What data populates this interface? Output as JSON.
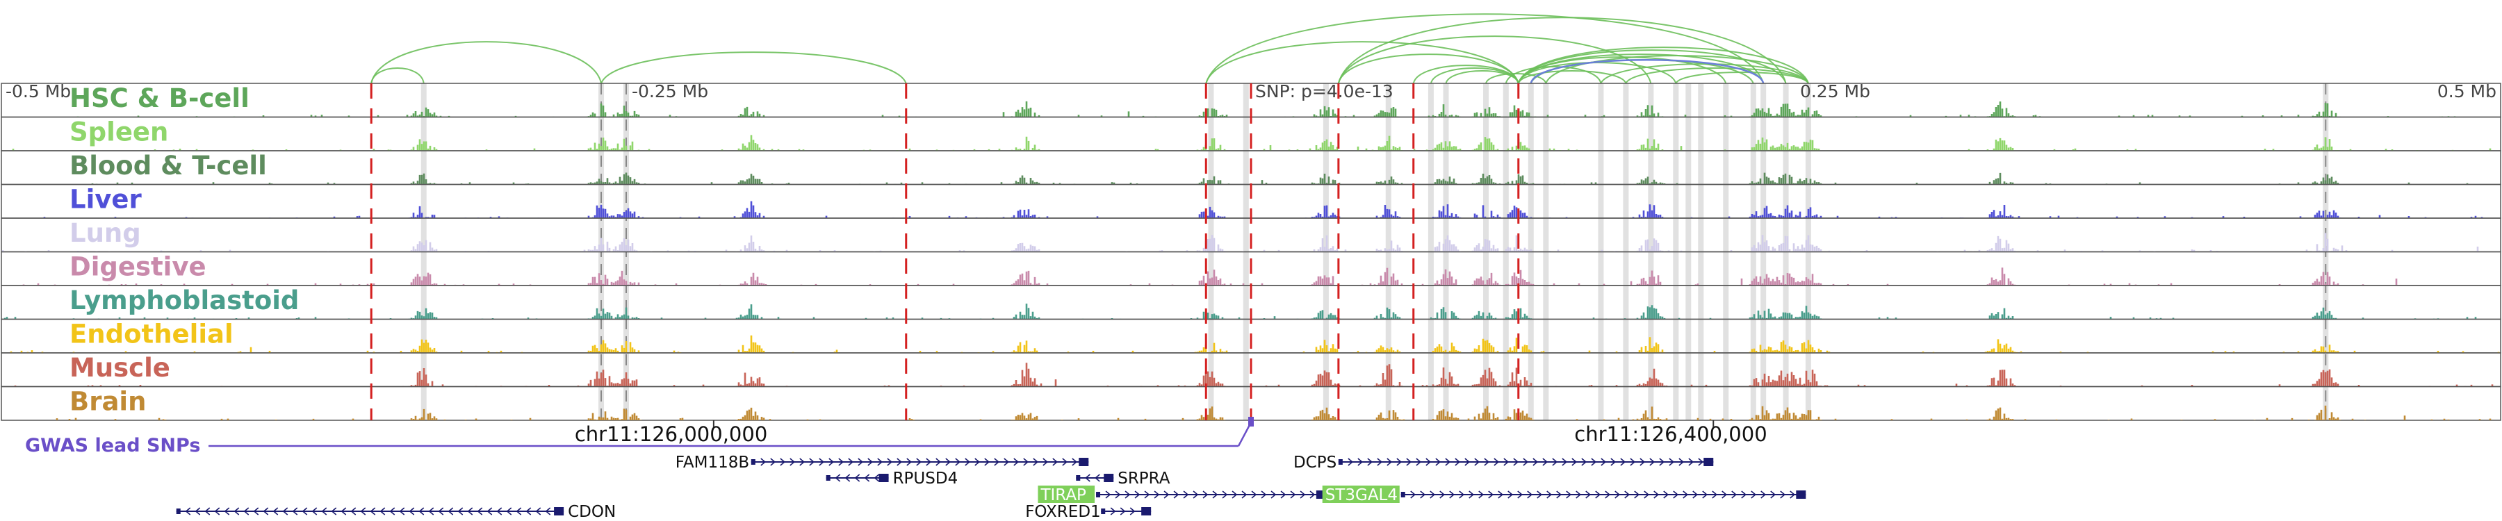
{
  "tracks": [
    {
      "name": "HSC & B-cell",
      "color": "#5da65a",
      "seed": 11,
      "amp": 0.55
    },
    {
      "name": "Spleen",
      "color": "#8fd66b",
      "seed": 23,
      "amp": 0.55
    },
    {
      "name": "Blood & T-cell",
      "color": "#5e8c5e",
      "seed": 37,
      "amp": 0.45
    },
    {
      "name": "Liver",
      "color": "#5050d8",
      "seed": 41,
      "amp": 0.6
    },
    {
      "name": "Lung",
      "color": "#d2cdea",
      "seed": 53,
      "amp": 0.65
    },
    {
      "name": "Digestive",
      "color": "#c98aab",
      "seed": 67,
      "amp": 0.7
    },
    {
      "name": "Lymphoblastoid",
      "color": "#4a9e8c",
      "seed": 71,
      "amp": 0.55
    },
    {
      "name": "Endothelial",
      "color": "#f2c418",
      "seed": 83,
      "amp": 0.6
    },
    {
      "name": "Muscle",
      "color": "#c86458",
      "seed": 97,
      "amp": 0.85
    },
    {
      "name": "Brain",
      "color": "#c08a34",
      "seed": 101,
      "amp": 0.55
    }
  ],
  "axis": {
    "range_mb": [
      -0.5,
      0.5
    ],
    "ticks": [
      {
        "pos": -0.5,
        "label": "-0.5 Mb"
      },
      {
        "pos": -0.25,
        "label": "-0.25 Mb"
      },
      {
        "pos": 0.25,
        "label": "0.25 Mb"
      },
      {
        "pos": 0.5,
        "label": "0.5 Mb"
      }
    ],
    "snp_pos": 0.0,
    "snp_label": "SNP: p=4.0e-13"
  },
  "genome": {
    "left_coord": "chr11:126,000,000",
    "right_coord": "chr11:126,400,000",
    "left_coord_pos": -0.215,
    "right_coord_pos": 0.185
  },
  "gwas": {
    "label": "GWAS lead SNPs",
    "color": "#6a4fc8"
  },
  "red_lines": [
    -0.352,
    -0.138,
    -0.018,
    0.0,
    0.035,
    0.065,
    0.107
  ],
  "grey_lines": [
    -0.331,
    -0.26,
    -0.25,
    -0.016,
    -0.002,
    0.03,
    0.055,
    0.072,
    0.078,
    0.094,
    0.102,
    0.112,
    0.118,
    0.14,
    0.15,
    0.16,
    0.17,
    0.175,
    0.18,
    0.19,
    0.201,
    0.205,
    0.214,
    0.223,
    0.43
  ],
  "grey_dashed": [
    -0.26,
    -0.25,
    0.43
  ],
  "arcs": [
    {
      "a": -0.352,
      "b": -0.331,
      "h": 22
    },
    {
      "a": -0.352,
      "b": -0.26,
      "h": 60
    },
    {
      "a": -0.26,
      "b": -0.138,
      "h": 45
    },
    {
      "a": -0.018,
      "b": 0.107,
      "h": 60
    },
    {
      "a": -0.018,
      "b": 0.205,
      "h": 100
    },
    {
      "a": 0.035,
      "b": 0.107,
      "h": 42
    },
    {
      "a": 0.035,
      "b": 0.16,
      "h": 68
    },
    {
      "a": 0.035,
      "b": 0.214,
      "h": 95
    },
    {
      "a": 0.065,
      "b": 0.107,
      "h": 26
    },
    {
      "a": 0.072,
      "b": 0.107,
      "h": 22
    },
    {
      "a": 0.078,
      "b": 0.107,
      "h": 18
    },
    {
      "a": 0.094,
      "b": 0.118,
      "h": 14
    },
    {
      "a": 0.102,
      "b": 0.14,
      "h": 24
    },
    {
      "a": 0.107,
      "b": 0.15,
      "h": 18
    },
    {
      "a": 0.107,
      "b": 0.17,
      "h": 30
    },
    {
      "a": 0.107,
      "b": 0.19,
      "h": 38
    },
    {
      "a": 0.107,
      "b": 0.205,
      "h": 42
    },
    {
      "a": 0.107,
      "b": 0.214,
      "h": 48
    },
    {
      "a": 0.107,
      "b": 0.223,
      "h": 52
    },
    {
      "a": 0.112,
      "b": 0.201,
      "h": 34
    },
    {
      "a": 0.118,
      "b": 0.223,
      "h": 40
    },
    {
      "a": 0.14,
      "b": 0.223,
      "h": 28
    },
    {
      "a": 0.15,
      "b": 0.223,
      "h": 22
    },
    {
      "a": 0.17,
      "b": 0.223,
      "h": 16
    }
  ],
  "genes": [
    {
      "name": "FAM118B",
      "start": -0.2,
      "end": -0.065,
      "strand": "+",
      "row": 0,
      "label_side": "left",
      "box": false
    },
    {
      "name": "DCPS",
      "start": 0.035,
      "end": 0.185,
      "strand": "+",
      "row": 0,
      "label_side": "left",
      "box": false
    },
    {
      "name": "RPUSD4",
      "start": -0.17,
      "end": -0.145,
      "strand": "-",
      "row": 1,
      "label_side": "right",
      "box": false
    },
    {
      "name": "SRPRA",
      "start": -0.07,
      "end": -0.055,
      "strand": "-",
      "row": 1,
      "label_side": "right",
      "box": false
    },
    {
      "name": "TIRAP",
      "start": -0.062,
      "end": 0.03,
      "strand": "+",
      "row": 2,
      "label_side": "left",
      "box": true
    },
    {
      "name": "ST3GAL4",
      "start": 0.06,
      "end": 0.222,
      "strand": "+",
      "row": 2,
      "label_side": "left",
      "box": true
    },
    {
      "name": "CDON",
      "start": -0.43,
      "end": -0.275,
      "strand": "-",
      "row": 3,
      "label_side": "right",
      "box": false
    },
    {
      "name": "FOXRED1",
      "start": -0.06,
      "end": -0.04,
      "strand": "+",
      "row": 3,
      "label_side": "left",
      "box": false
    }
  ],
  "colors": {
    "arc": "#6cbf5a",
    "arc_highlight": "#6a7fd8",
    "red": "#d42020",
    "grey": "#c8c8c8",
    "gene": "#1a1a6e",
    "gene_box": "#7fd05a"
  }
}
